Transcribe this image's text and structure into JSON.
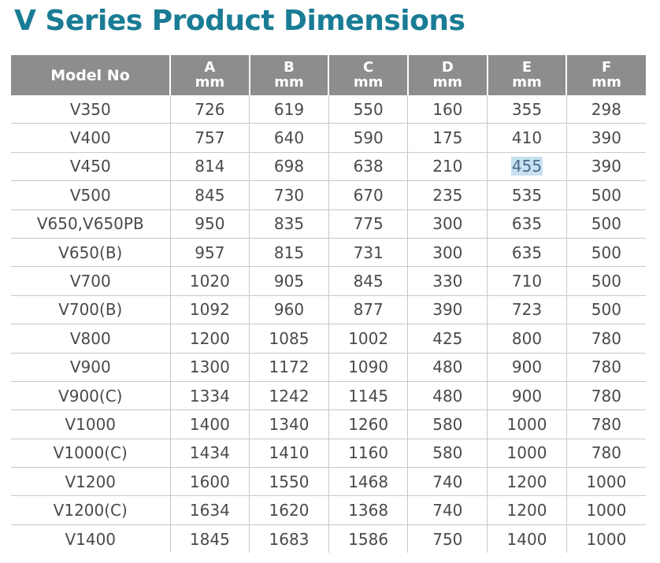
{
  "title": "V Series Product Dimensions",
  "header": {
    "model": "Model No",
    "columns": [
      {
        "letter": "A",
        "unit": "mm"
      },
      {
        "letter": "B",
        "unit": "mm"
      },
      {
        "letter": "C",
        "unit": "mm"
      },
      {
        "letter": "D",
        "unit": "mm"
      },
      {
        "letter": "E",
        "unit": "mm"
      },
      {
        "letter": "F",
        "unit": "mm"
      }
    ]
  },
  "rows": [
    {
      "model": "V350",
      "values": [
        "726",
        "619",
        "550",
        "160",
        "355",
        "298"
      ]
    },
    {
      "model": "V400",
      "values": [
        "757",
        "640",
        "590",
        "175",
        "410",
        "390"
      ]
    },
    {
      "model": "V450",
      "values": [
        "814",
        "698",
        "638",
        "210",
        "455",
        "390"
      ]
    },
    {
      "model": "V500",
      "values": [
        "845",
        "730",
        "670",
        "235",
        "535",
        "500"
      ]
    },
    {
      "model": "V650,V650PB",
      "values": [
        "950",
        "835",
        "775",
        "300",
        "635",
        "500"
      ]
    },
    {
      "model": "V650(B)",
      "values": [
        "957",
        "815",
        "731",
        "300",
        "635",
        "500"
      ]
    },
    {
      "model": "V700",
      "values": [
        "1020",
        "905",
        "845",
        "330",
        "710",
        "500"
      ]
    },
    {
      "model": "V700(B)",
      "values": [
        "1092",
        "960",
        "877",
        "390",
        "723",
        "500"
      ]
    },
    {
      "model": "V800",
      "values": [
        "1200",
        "1085",
        "1002",
        "425",
        "800",
        "780"
      ]
    },
    {
      "model": "V900",
      "values": [
        "1300",
        "1172",
        "1090",
        "480",
        "900",
        "780"
      ]
    },
    {
      "model": "V900(C)",
      "values": [
        "1334",
        "1242",
        "1145",
        "480",
        "900",
        "780"
      ]
    },
    {
      "model": "V1000",
      "values": [
        "1400",
        "1340",
        "1260",
        "580",
        "1000",
        "780"
      ]
    },
    {
      "model": "V1000(C)",
      "values": [
        "1434",
        "1410",
        "1160",
        "580",
        "1000",
        "780"
      ]
    },
    {
      "model": "V1200",
      "values": [
        "1600",
        "1550",
        "1468",
        "740",
        "1200",
        "1000"
      ]
    },
    {
      "model": "V1200(C)",
      "values": [
        "1634",
        "1620",
        "1368",
        "740",
        "1200",
        "1000"
      ]
    },
    {
      "model": "V1400",
      "values": [
        "1845",
        "1683",
        "1586",
        "750",
        "1400",
        "1000"
      ]
    }
  ],
  "selection": {
    "row": 2,
    "col": 4,
    "color": "#c7e0f2"
  },
  "colors": {
    "title": "#1a7c95",
    "header_bg": "#8d8d8d",
    "header_text": "#ffffff",
    "cell_text": "#4a4a4a",
    "grid": "#c8c8c8"
  }
}
